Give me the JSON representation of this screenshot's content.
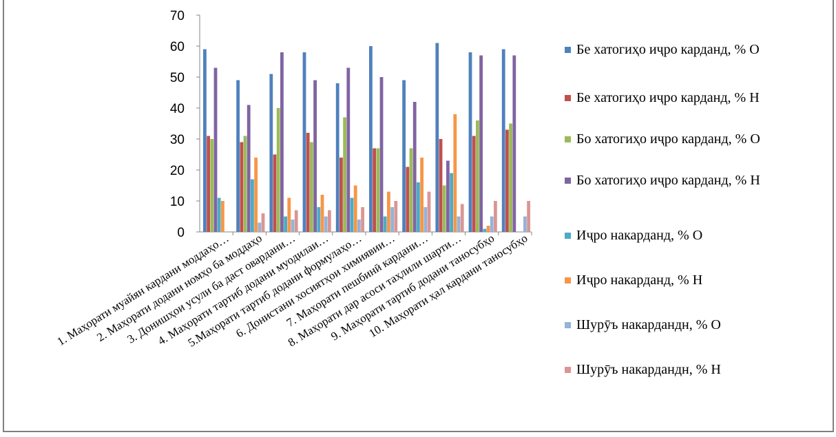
{
  "chart_data": {
    "type": "bar",
    "categories": [
      "1. Маҳорати муайян кардани моддаҳо…",
      "2. Маҳорати додани номҳо ба моддаҳо",
      "3. Донишҳои усули ба даст овардани…",
      "4. Маҳорати тартиб додани муодилаи…",
      "5.Маҳорати тартиб додани формулаҳо…",
      "6. Донистани хосиятҳои химиявии…",
      "7. Маҳорати пешбинӣ кардани…",
      "8. Маҳорати дар асоси таҳлили шарти…",
      "9. Маҳорати тартиб додани таносубҳо",
      "10. Маҳорати ҳал кардани таносубҳо"
    ],
    "series": [
      {
        "name": "Бе хатогиҳо иҷро карданд, % О",
        "color": "#4F81BD",
        "values": [
          59,
          49,
          51,
          58,
          48,
          60,
          49,
          61,
          58,
          59
        ]
      },
      {
        "name": "Бе хатогиҳо иҷро карданд, % Н",
        "color": "#C0504D",
        "values": [
          31,
          29,
          25,
          32,
          24,
          27,
          21,
          30,
          31,
          33
        ]
      },
      {
        "name": "Бо хатогиҳо иҷро карданд, % О",
        "color": "#9BBB59",
        "values": [
          30,
          31,
          40,
          29,
          37,
          27,
          27,
          15,
          36,
          35
        ]
      },
      {
        "name": "Бо хатогиҳо иҷро карданд, % Н",
        "color": "#8064A2",
        "values": [
          53,
          41,
          58,
          49,
          53,
          50,
          42,
          23,
          57,
          57
        ]
      },
      {
        "name": "Иҷро накарданд, % О",
        "color": "#4BACC6",
        "values": [
          11,
          17,
          5,
          8,
          11,
          5,
          16,
          19,
          1,
          0
        ]
      },
      {
        "name": "Иҷро накарданд, % Н",
        "color": "#F79646",
        "values": [
          10,
          24,
          11,
          12,
          15,
          13,
          24,
          38,
          2,
          0
        ]
      },
      {
        "name": "Шурӯъ накардандн, % О",
        "color": "#95B3D7",
        "values": [
          0,
          3,
          4,
          5,
          4,
          8,
          8,
          5,
          5,
          5
        ]
      },
      {
        "name": "Шурӯъ накардандн, % Н",
        "color": "#DA9694",
        "values": [
          0,
          6,
          7,
          7,
          8,
          10,
          13,
          9,
          10,
          10
        ]
      }
    ],
    "ylim": [
      0,
      70
    ],
    "yticks": [
      0,
      10,
      20,
      30,
      40,
      50,
      60,
      70
    ],
    "grid": false,
    "legend_position": "right"
  }
}
